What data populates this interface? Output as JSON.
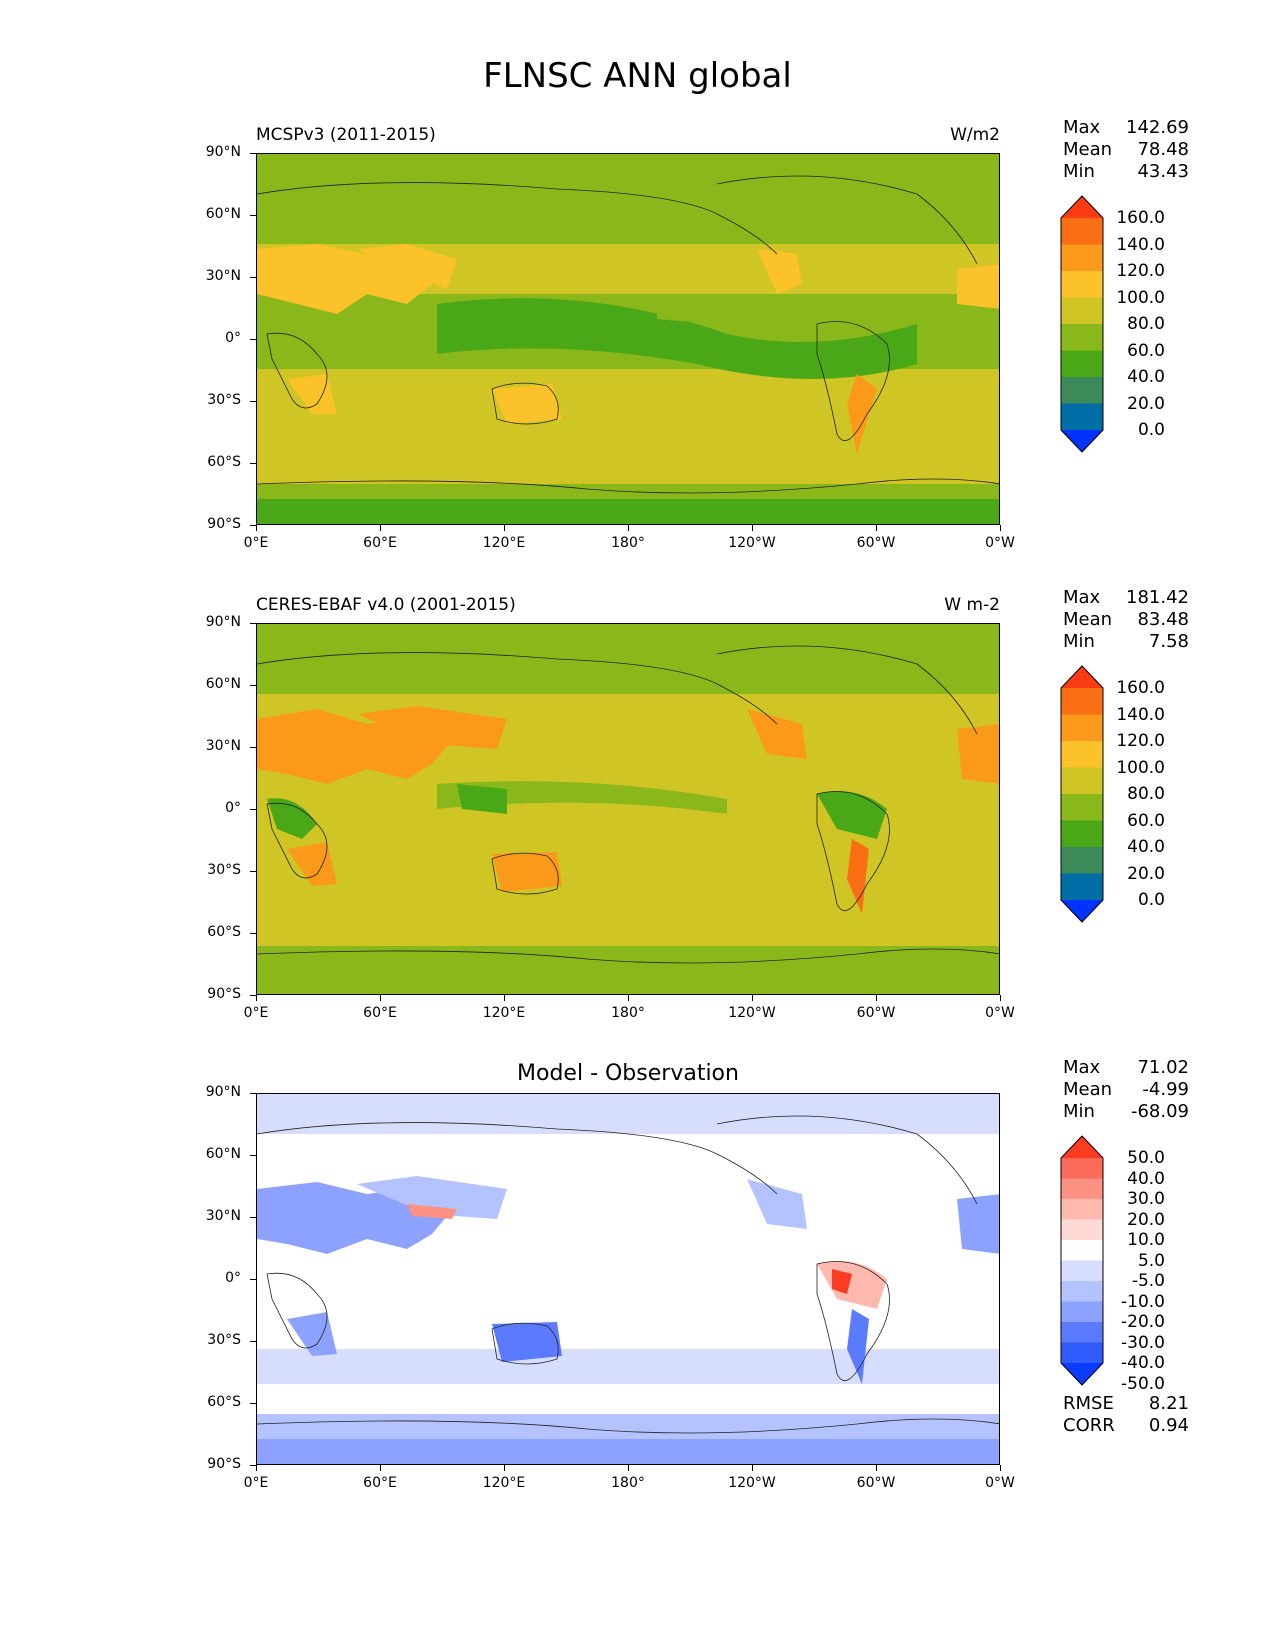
{
  "title": "FLNSC ANN global",
  "axes": {
    "lat_labels": [
      "90°N",
      "60°N",
      "30°N",
      "0°",
      "30°S",
      "60°S",
      "90°S"
    ],
    "lon_labels": [
      "0°E",
      "60°E",
      "120°E",
      "180°",
      "120°W",
      "60°W",
      "0°W"
    ]
  },
  "colors": {
    "abs_levels": [
      "#0033ff",
      "#006ea6",
      "#3a8a5a",
      "#4aa818",
      "#8ab81a",
      "#cfc524",
      "#fbc22a",
      "#fb9a1a",
      "#fb6f14",
      "#fb3b12"
    ],
    "diff_levels": [
      "#0a3bff",
      "#2f5bff",
      "#5b7bff",
      "#8da2ff",
      "#b4c3ff",
      "#d6ddfd",
      "#ffffff",
      "#fdd9d4",
      "#fdb9ae",
      "#fd9184",
      "#fc6a5a",
      "#fb3b22"
    ]
  },
  "panels": [
    {
      "left_title": "MCSPv3 (2011-2015)",
      "right_title": "W/m2",
      "stats": {
        "max_label": "Max",
        "max": "142.69",
        "mean_label": "Mean",
        "mean": "78.48",
        "min_label": "Min",
        "min": "43.43"
      },
      "colorbar_ticks": [
        "160.0",
        "140.0",
        "120.0",
        "100.0",
        "80.0",
        "60.0",
        "40.0",
        "20.0",
        "0.0"
      ]
    },
    {
      "left_title": "CERES-EBAF v4.0 (2001-2015)",
      "right_title": "W m-2",
      "stats": {
        "max_label": "Max",
        "max": "181.42",
        "mean_label": "Mean",
        "mean": "83.48",
        "min_label": "Min",
        "min": "7.58"
      },
      "colorbar_ticks": [
        "160.0",
        "140.0",
        "120.0",
        "100.0",
        "80.0",
        "60.0",
        "40.0",
        "20.0",
        "0.0"
      ]
    },
    {
      "center_title": "Model - Observation",
      "stats": {
        "max_label": "Max",
        "max": "71.02",
        "mean_label": "Mean",
        "mean": "-4.99",
        "min_label": "Min",
        "min": "-68.09"
      },
      "colorbar_ticks": [
        "50.0",
        "40.0",
        "30.0",
        "20.0",
        "10.0",
        "5.0",
        "-5.0",
        "-10.0",
        "-20.0",
        "-30.0",
        "-40.0",
        "-50.0"
      ],
      "metrics": {
        "rmse_label": "RMSE",
        "rmse": "8.21",
        "corr_label": "CORR",
        "corr": "0.94"
      }
    }
  ]
}
